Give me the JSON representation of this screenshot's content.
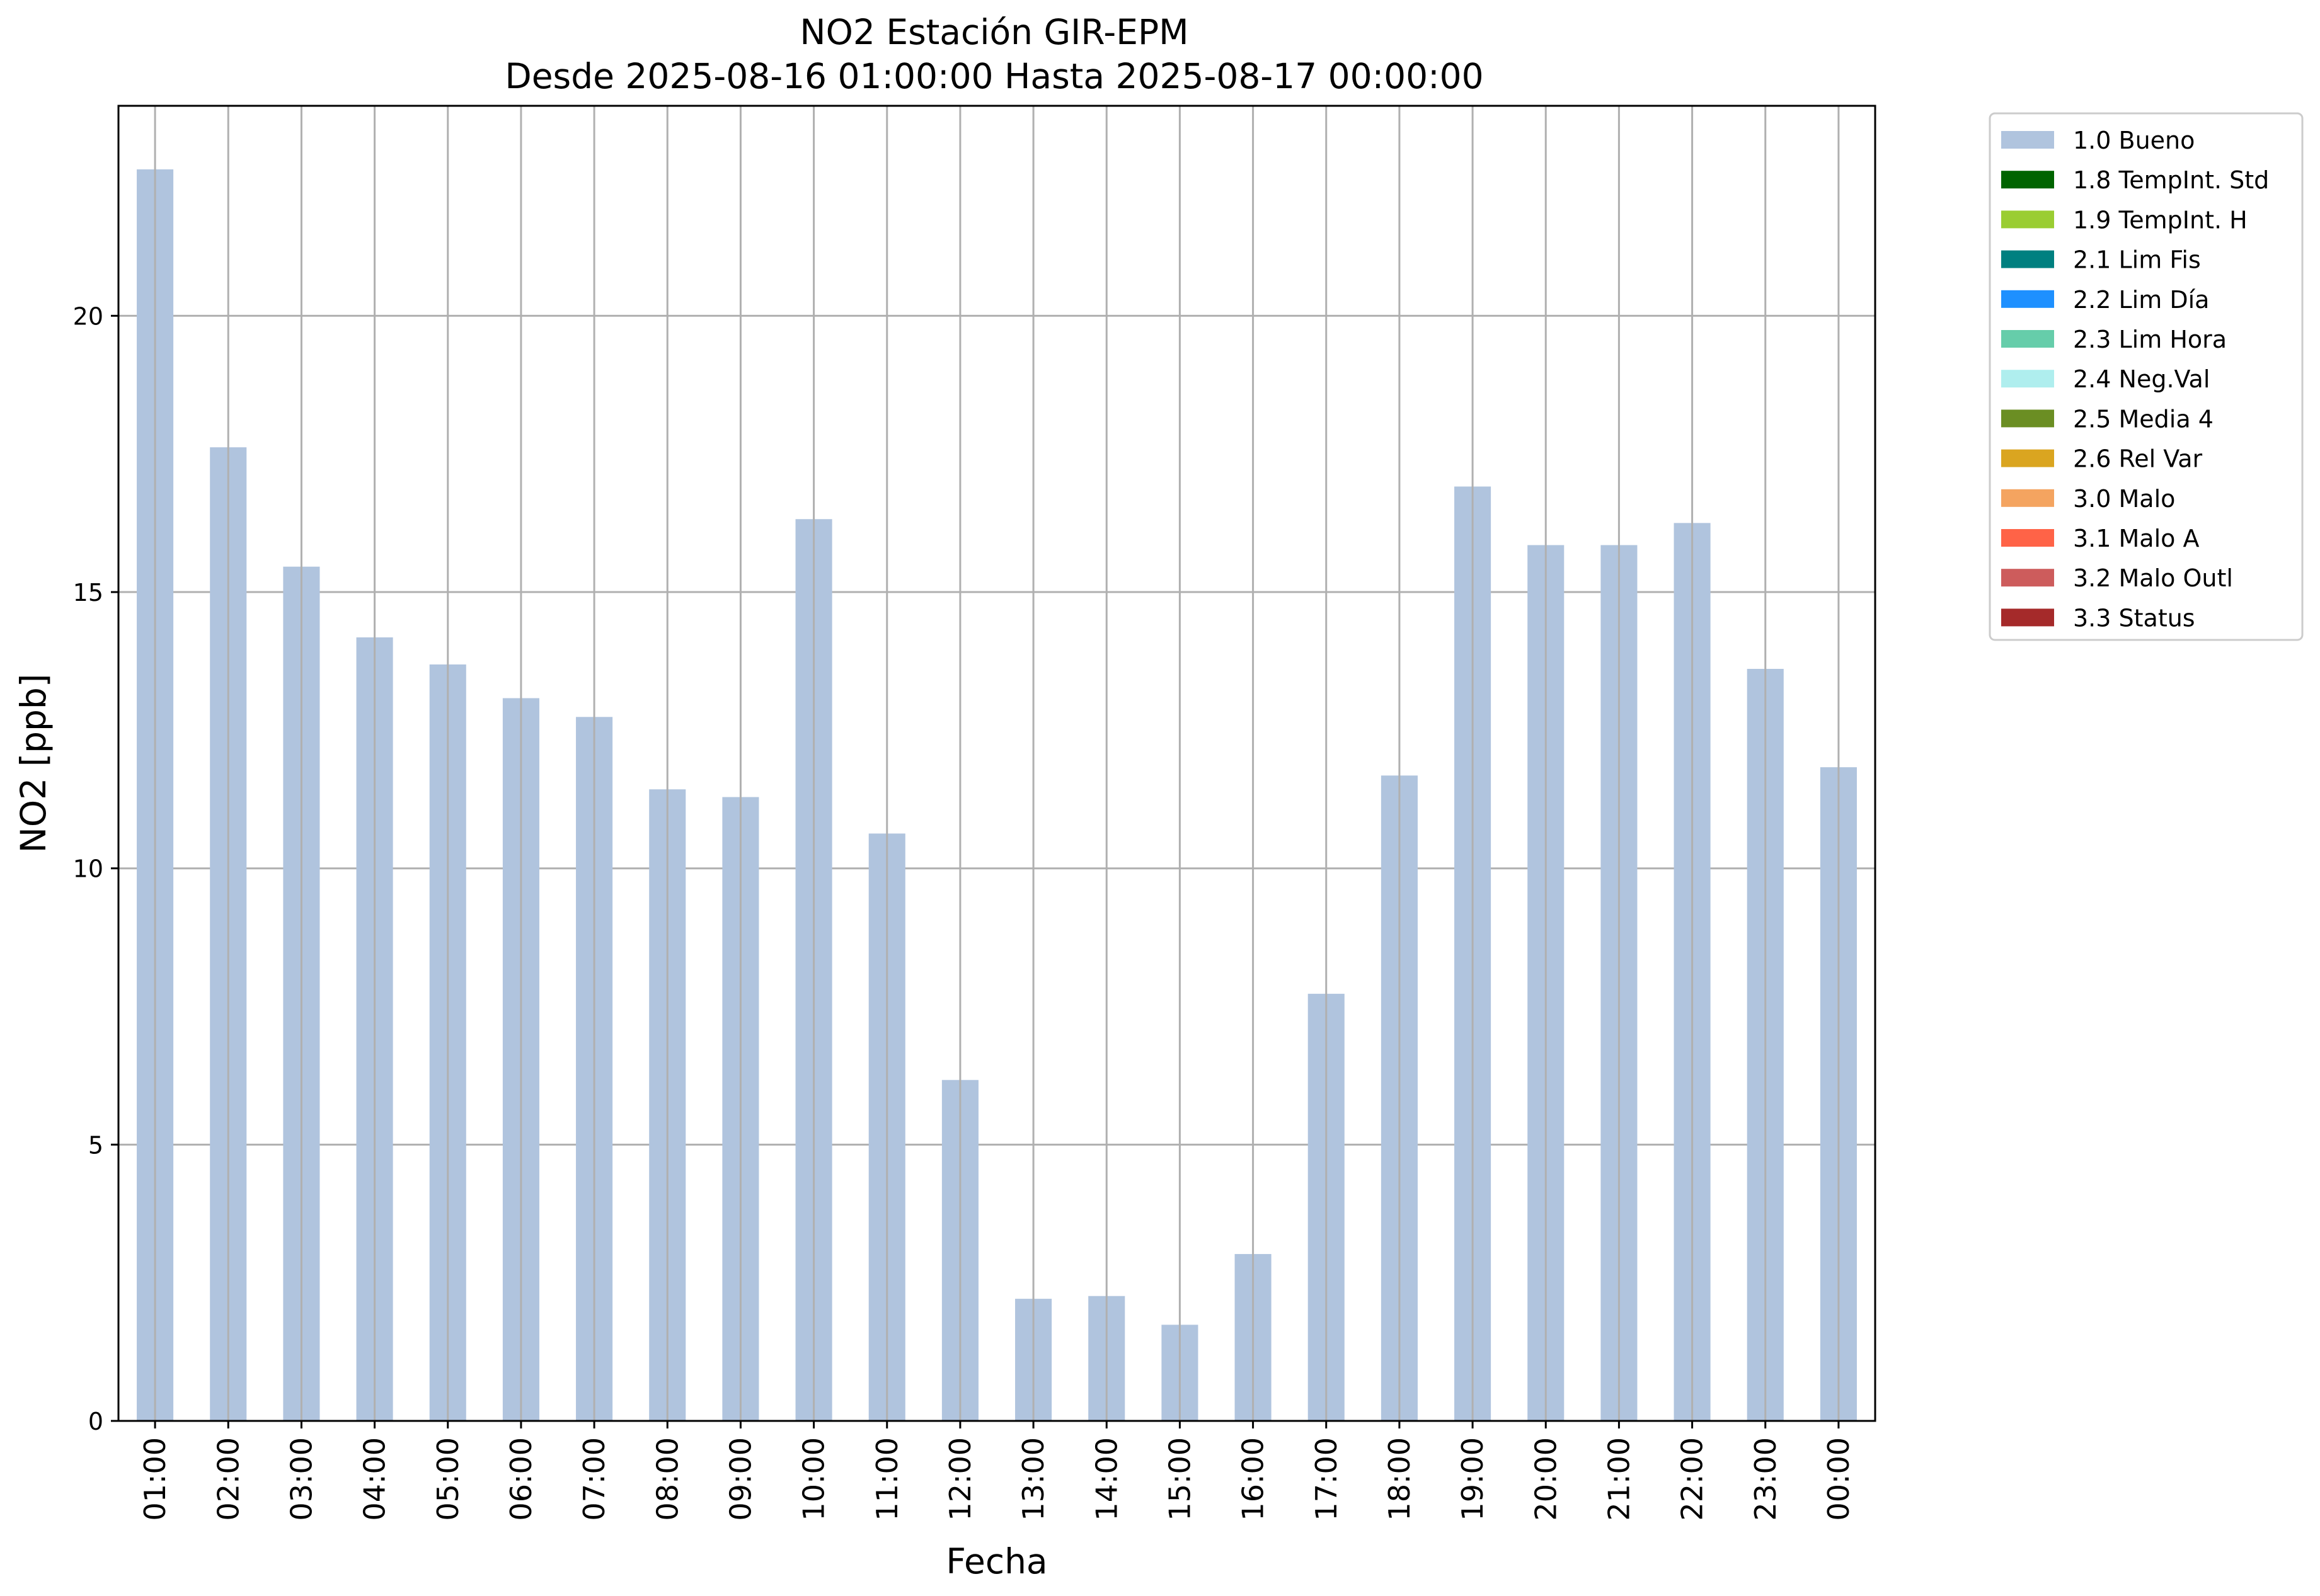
{
  "chart_data": {
    "type": "bar",
    "title": "NO2 Estación GIR-EPM",
    "subtitle": "Desde 2025-08-16 01:00:00 Hasta 2025-08-17 00:00:00",
    "xlabel": "Fecha",
    "ylabel": "NO2 [ppb]",
    "ylim": [
      0,
      23.8
    ],
    "yticks": [
      0,
      5,
      10,
      15,
      20
    ],
    "grid": true,
    "legend_position": "outside-right-top",
    "categories": [
      "01:00",
      "02:00",
      "03:00",
      "04:00",
      "05:00",
      "06:00",
      "07:00",
      "08:00",
      "09:00",
      "10:00",
      "11:00",
      "12:00",
      "13:00",
      "14:00",
      "15:00",
      "16:00",
      "17:00",
      "18:00",
      "19:00",
      "20:00",
      "21:00",
      "22:00",
      "23:00",
      "00:00"
    ],
    "series": [
      {
        "name": "1.0 Bueno",
        "color": "#b0c4de",
        "values": [
          22.65,
          17.62,
          15.46,
          14.18,
          13.69,
          13.08,
          12.74,
          11.43,
          11.29,
          16.32,
          10.63,
          6.17,
          2.21,
          2.26,
          1.74,
          3.02,
          7.73,
          11.68,
          16.91,
          15.85,
          15.85,
          16.25,
          13.61,
          11.83
        ]
      }
    ],
    "legend": [
      {
        "label": "1.0 Bueno",
        "color": "#b0c4de"
      },
      {
        "label": "1.8 TempInt. Std",
        "color": "#006400"
      },
      {
        "label": "1.9 TempInt. H",
        "color": "#9acd32"
      },
      {
        "label": "2.1 Lim Fis",
        "color": "#008080"
      },
      {
        "label": "2.2 Lim Día",
        "color": "#1e90ff"
      },
      {
        "label": "2.3 Lim Hora",
        "color": "#66cdaa"
      },
      {
        "label": "2.4 Neg.Val",
        "color": "#afeeee"
      },
      {
        "label": "2.5 Media 4",
        "color": "#6b8e23"
      },
      {
        "label": "2.6 Rel Var",
        "color": "#daa520"
      },
      {
        "label": "3.0 Malo",
        "color": "#f4a460"
      },
      {
        "label": "3.1 Malo A",
        "color": "#ff6347"
      },
      {
        "label": "3.2 Malo Outl",
        "color": "#cd5c5c"
      },
      {
        "label": "3.3 Status",
        "color": "#a52a2a"
      }
    ]
  }
}
